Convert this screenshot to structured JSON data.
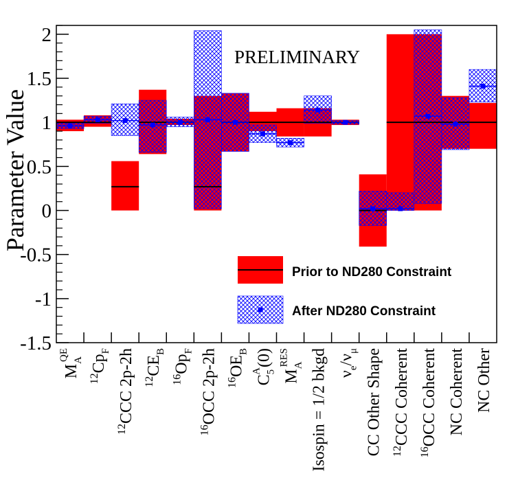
{
  "chart_data": {
    "type": "bar",
    "ylabel": "Parameter Value",
    "watermark": "PRELIMINARY",
    "ylim": [
      -1.5,
      2.1
    ],
    "yticks": [
      -1.5,
      -1,
      -0.5,
      0,
      0.5,
      1,
      1.5,
      2
    ],
    "ytick_labels": [
      "-1.5",
      "-1",
      "-0.5",
      "0",
      "0.5",
      "1",
      "1.5",
      "2"
    ],
    "categories": [
      {
        "main": "M",
        "sub": "A",
        "sup": "QE",
        "pre": ""
      },
      {
        "main": "p",
        "sub": "F",
        "sup": "",
        "pre": "12C"
      },
      {
        "main": "CC 2p-2h",
        "sub": "",
        "sup": "",
        "pre": "12C"
      },
      {
        "main": "E",
        "sub": "B",
        "sup": "",
        "pre": "12C"
      },
      {
        "main": "p",
        "sub": "F",
        "sup": "",
        "pre": "16O"
      },
      {
        "main": "CC 2p-2h",
        "sub": "",
        "sup": "",
        "pre": "16O"
      },
      {
        "main": "E",
        "sub": "B",
        "sup": "",
        "pre": "16O"
      },
      {
        "main": "C",
        "sub": "5",
        "sup": "A",
        "post": "(0)"
      },
      {
        "main": "M",
        "sub": "A",
        "sup": "RES",
        "pre": ""
      },
      {
        "main": "Isospin = 1/2 bkgd",
        "sub": "",
        "sup": "",
        "pre": ""
      },
      {
        "main": "ν",
        "sub": "e",
        "sup": "",
        "mid": "/ν",
        "sub2": "μ"
      },
      {
        "main": "CC Other Shape",
        "sub": "",
        "sup": "",
        "pre": ""
      },
      {
        "main": "CC Coherent",
        "sub": "",
        "sup": "",
        "pre": "12C"
      },
      {
        "main": "CC Coherent",
        "sub": "",
        "sup": "",
        "pre": "16O"
      },
      {
        "main": "NC Coherent",
        "sub": "",
        "sup": "",
        "pre": ""
      },
      {
        "main": "NC Other",
        "sub": "",
        "sup": "",
        "pre": ""
      }
    ],
    "series": [
      {
        "name": "Prior to ND280 Constraint",
        "color": "#ff0000",
        "line_color": "#000000",
        "values": [
          1.0,
          1.0,
          0.27,
          1.0,
          1.0,
          0.27,
          1.0,
          1.0,
          1.0,
          1.0,
          1.0,
          0.0,
          1.0,
          1.0,
          1.0,
          1.0
        ],
        "lower": [
          0.9,
          0.95,
          0.0,
          0.64,
          0.97,
          0.0,
          0.67,
          0.9,
          0.84,
          0.84,
          0.97,
          -0.41,
          0.0,
          0.0,
          0.7,
          0.7
        ],
        "upper": [
          1.03,
          1.08,
          0.56,
          1.37,
          1.04,
          1.3,
          1.33,
          1.12,
          1.16,
          1.16,
          1.03,
          0.41,
          2.0,
          2.0,
          1.3,
          1.22
        ]
      },
      {
        "name": "After ND280 Constraint",
        "color": "#0000ff",
        "values": [
          0.96,
          1.03,
          1.02,
          0.97,
          1.0,
          1.03,
          1.0,
          0.87,
          0.77,
          1.14,
          1.0,
          0.02,
          0.02,
          1.07,
          0.98,
          1.41
        ],
        "lower": [
          0.93,
          0.99,
          0.85,
          0.66,
          0.95,
          0.02,
          0.67,
          0.77,
          0.72,
          0.99,
          0.98,
          -0.17,
          0.0,
          0.08,
          0.69,
          1.23
        ],
        "upper": [
          0.99,
          1.07,
          1.21,
          1.25,
          1.06,
          2.04,
          1.33,
          0.97,
          0.82,
          1.3,
          1.02,
          0.22,
          0.2,
          2.05,
          1.28,
          1.6
        ]
      }
    ],
    "legend": {
      "placement": "bottom-right"
    }
  }
}
